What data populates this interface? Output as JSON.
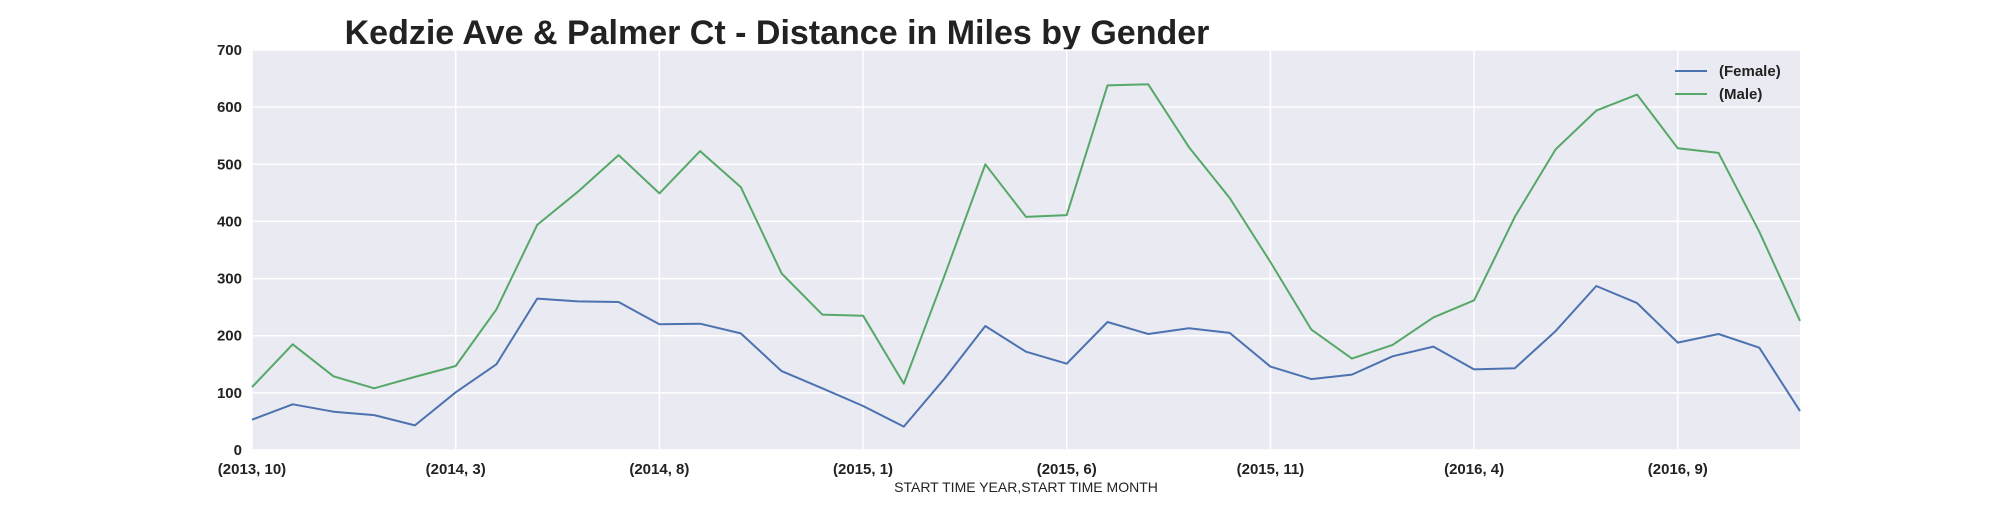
{
  "chart_data": {
    "type": "line",
    "title": "Kedzie Ave & Palmer Ct - Distance in Miles by Gender",
    "xlabel": "START TIME YEAR,START TIME MONTH",
    "ylabel": "",
    "ylim": [
      0,
      700
    ],
    "yticks": [
      0,
      100,
      200,
      300,
      400,
      500,
      600,
      700
    ],
    "x": [
      "(2013, 10)",
      "(2013, 11)",
      "(2013, 12)",
      "(2014, 1)",
      "(2014, 2)",
      "(2014, 3)",
      "(2014, 4)",
      "(2014, 5)",
      "(2014, 6)",
      "(2014, 7)",
      "(2014, 8)",
      "(2014, 9)",
      "(2014, 10)",
      "(2014, 11)",
      "(2014, 12)",
      "(2015, 1)",
      "(2015, 2)",
      "(2015, 3)",
      "(2015, 4)",
      "(2015, 5)",
      "(2015, 6)",
      "(2015, 7)",
      "(2015, 8)",
      "(2015, 9)",
      "(2015, 10)",
      "(2015, 11)",
      "(2015, 12)",
      "(2016, 1)",
      "(2016, 2)",
      "(2016, 3)",
      "(2016, 4)",
      "(2016, 5)",
      "(2016, 6)",
      "(2016, 7)",
      "(2016, 8)",
      "(2016, 9)",
      "(2016, 10)",
      "(2016, 11)",
      "(2016, 12)"
    ],
    "xticks": [
      "(2013, 10)",
      "(2014, 3)",
      "(2014, 8)",
      "(2015, 1)",
      "(2015, 6)",
      "(2015, 11)",
      "(2016, 4)",
      "(2016, 9)"
    ],
    "series": [
      {
        "name": "(Female)",
        "color": "#4c72b0",
        "values": [
          53,
          80,
          67,
          61,
          43,
          101,
          150,
          265,
          260,
          259,
          220,
          221,
          204,
          138,
          108,
          77,
          41,
          125,
          217,
          172,
          151,
          224,
          203,
          213,
          205,
          146,
          124,
          132,
          164,
          181,
          141,
          143,
          208,
          287,
          257,
          188,
          203,
          179,
          68
        ]
      },
      {
        "name": "(Male)",
        "color": "#55a868",
        "values": [
          110,
          185,
          129,
          108,
          128,
          147,
          246,
          394,
          452,
          516,
          449,
          523,
          460,
          309,
          237,
          235,
          116,
          305,
          500,
          408,
          411,
          638,
          640,
          530,
          441,
          329,
          211,
          160,
          184,
          232,
          262,
          408,
          526,
          594,
          622,
          528,
          520,
          382,
          226
        ]
      }
    ],
    "grid": true,
    "legend": "top-right",
    "background": "#eaeaf2"
  }
}
